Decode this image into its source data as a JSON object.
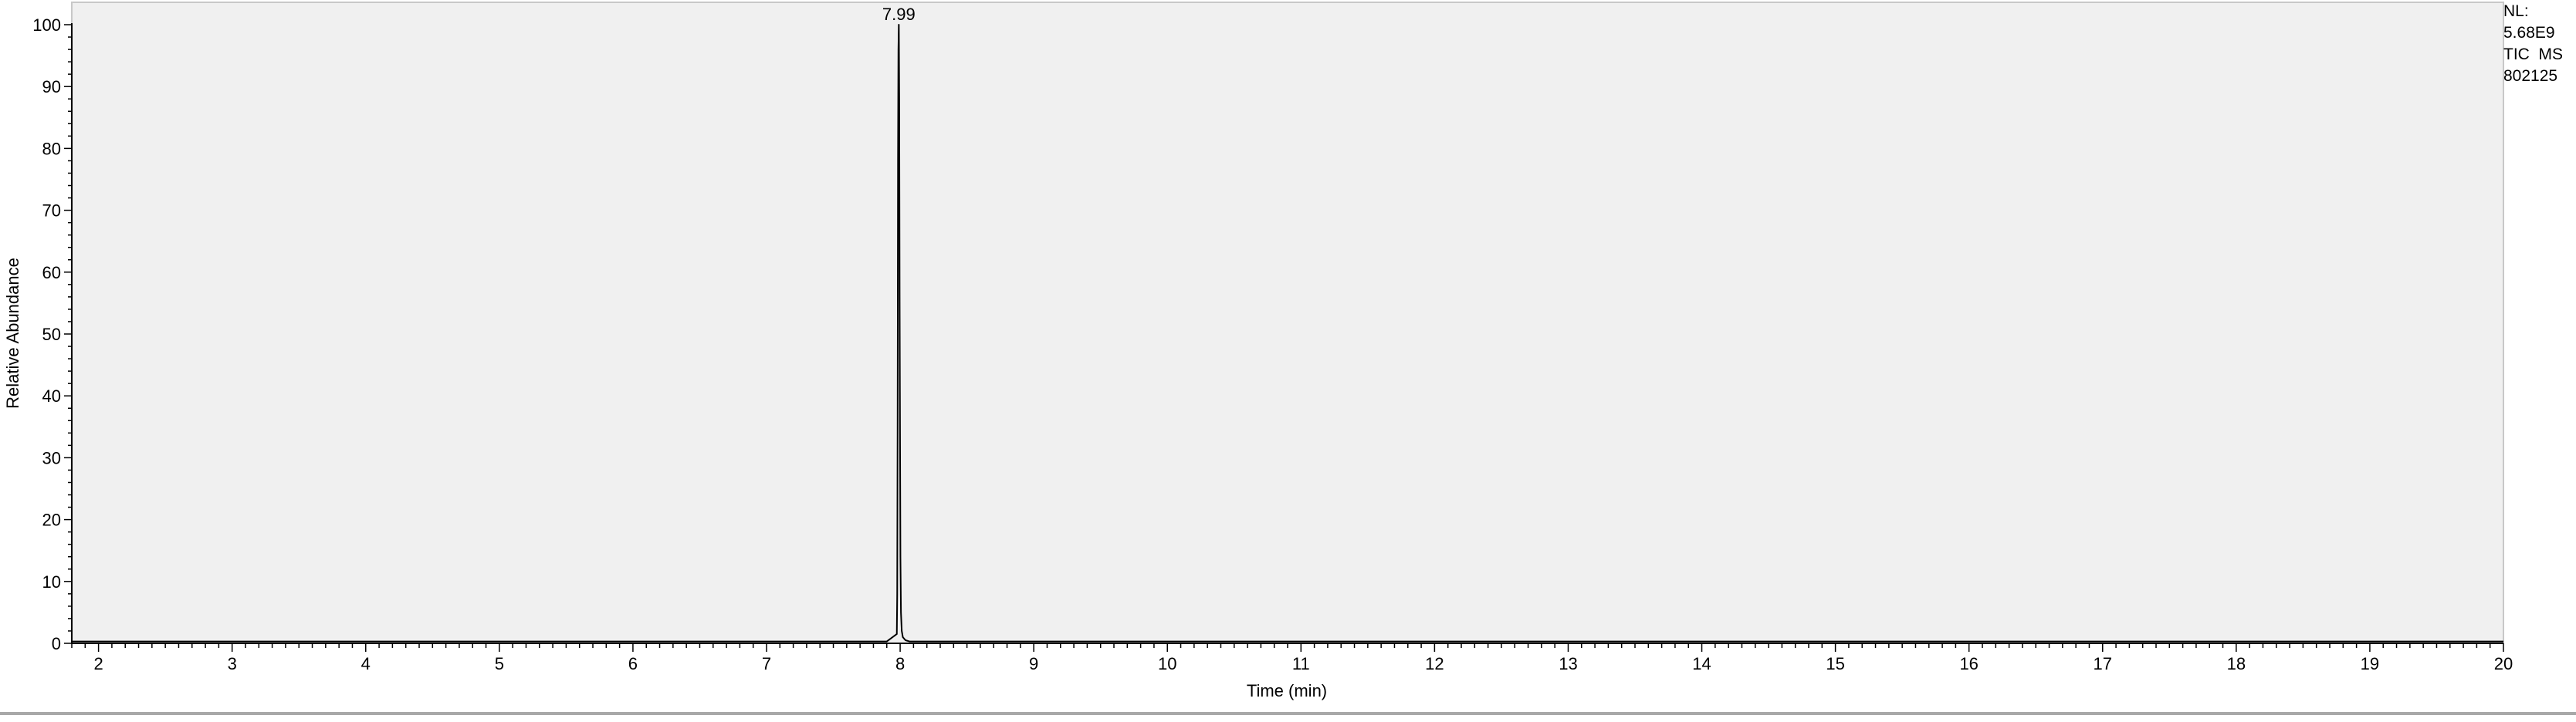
{
  "chart_data": {
    "type": "line",
    "xlabel": "Time (min)",
    "ylabel": "Relative Abundance",
    "xlim": [
      1.8,
      20
    ],
    "ylim": [
      0,
      100
    ],
    "x_ticks": [
      "2",
      "3",
      "4",
      "5",
      "6",
      "7",
      "8",
      "9",
      "10",
      "11",
      "12",
      "13",
      "14",
      "15",
      "16",
      "17",
      "18",
      "19",
      "20"
    ],
    "y_ticks": [
      "0",
      "10",
      "20",
      "30",
      "40",
      "50",
      "60",
      "70",
      "80",
      "90",
      "100"
    ],
    "grid": false,
    "plot_background": "#f0f0f0",
    "line_color": "#000000",
    "series": [
      {
        "x": [
          1.8,
          7.9,
          7.975,
          7.978,
          7.981,
          7.984,
          7.987,
          7.99,
          7.993,
          7.996,
          7.999,
          8.002,
          8.006,
          8.012,
          8.02,
          8.04,
          8.07,
          20
        ],
        "y": [
          0.3,
          0.3,
          1.5,
          8,
          35,
          78,
          96,
          100,
          88,
          56,
          34,
          14,
          5,
          2,
          1,
          0.5,
          0.3,
          0.3
        ]
      }
    ],
    "peak_labels": [
      {
        "x": 7.99,
        "y": 100,
        "label": "7.99"
      }
    ]
  },
  "info": {
    "nl_label": "NL:",
    "nl_value": "5.68E9",
    "scan_filter": "TIC  MS",
    "sample_name": "802125"
  }
}
